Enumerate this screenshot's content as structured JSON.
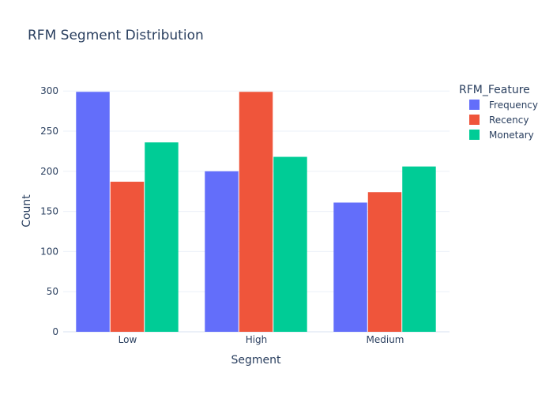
{
  "chart_data": {
    "type": "bar",
    "title": "RFM Segment Distribution",
    "xlabel": "Segment",
    "ylabel": "Count",
    "categories": [
      "Low",
      "High",
      "Medium"
    ],
    "series": [
      {
        "name": "Frequency",
        "values": [
          299,
          200,
          161
        ],
        "color": "#636efa"
      },
      {
        "name": "Recency",
        "values": [
          187,
          299,
          174
        ],
        "color": "#ef553b"
      },
      {
        "name": "Monetary",
        "values": [
          236,
          218,
          206
        ],
        "color": "#00cc96"
      }
    ],
    "ylim": [
      0,
      315
    ],
    "yticks": [
      0,
      50,
      100,
      150,
      200,
      250,
      300
    ],
    "legend": {
      "title": "RFM_Feature",
      "placement": "top-right"
    },
    "grid": true
  }
}
